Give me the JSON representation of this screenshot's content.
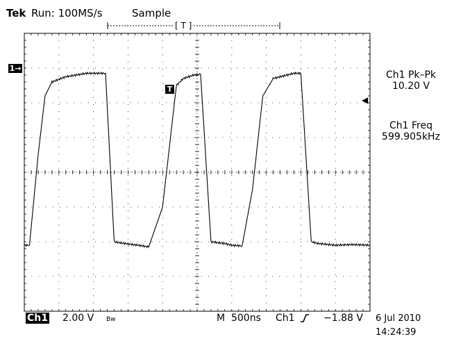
{
  "header": {
    "brand": "Tek",
    "run_status": "Run: 100MS/s",
    "acq_mode": "Sample",
    "trigger_window_label": "[ T ]"
  },
  "markers": {
    "channel_ref": "1→",
    "trigger_point": "T",
    "trigger_level_arrow": "◀"
  },
  "measurements": {
    "pkpk_label": "Ch1 Pk–Pk",
    "pkpk_value": "10.20 V",
    "freq_label": "Ch1 Freq",
    "freq_value": "599.905kHz"
  },
  "footer": {
    "channel": "Ch1",
    "volts_div": "2.00 V",
    "bw_mark": "Bw",
    "timebase": "M  500ns",
    "trigger_source": "Ch1",
    "trigger_slope_icon": "rising-edge",
    "trigger_level": "−1.88 V",
    "date": "6 Jul 2010",
    "time": "14:24:39"
  },
  "chart_data": {
    "type": "line",
    "grid": true,
    "x_divisions": 10,
    "y_divisions": 8,
    "volts_per_div": 2.0,
    "seconds_per_div": 5e-07,
    "series": [
      {
        "color": "#000000",
        "x_div": [
          0,
          0.15,
          0.4,
          0.6,
          0.8,
          1.2,
          1.8,
          2.35,
          2.6,
          2.9,
          3.3,
          3.6,
          4.0,
          4.4,
          4.6,
          4.9,
          5.1,
          5.4,
          5.8,
          6.0,
          6.3,
          6.6,
          6.9,
          7.2,
          7.6,
          7.8,
          8.0,
          8.3,
          8.5,
          9.0,
          9.5,
          10.0
        ],
        "y_div": [
          -2.1,
          -2.1,
          0.5,
          2.2,
          2.6,
          2.75,
          2.85,
          2.85,
          -2.0,
          -2.05,
          -2.1,
          -2.15,
          -1.0,
          2.5,
          2.7,
          2.8,
          2.82,
          -2.0,
          -2.05,
          -2.1,
          -2.12,
          -0.5,
          2.2,
          2.7,
          2.8,
          2.85,
          2.85,
          -2.0,
          -2.05,
          -2.1,
          -2.08,
          -2.1
        ]
      }
    ]
  }
}
